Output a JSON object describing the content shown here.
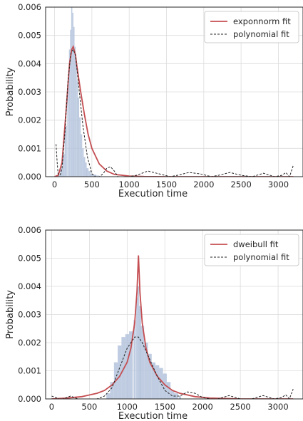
{
  "chart_data": [
    {
      "type": "histogram_with_fits",
      "xlabel": "Execution time",
      "ylabel": "Probability",
      "xlim": [
        -120,
        3330
      ],
      "ylim": [
        0,
        0.006
      ],
      "xticks": [
        0,
        500,
        1000,
        1500,
        2000,
        2500,
        3000
      ],
      "yticks": [
        "0.000",
        "0.001",
        "0.002",
        "0.003",
        "0.004",
        "0.005",
        "0.006"
      ],
      "grid": true,
      "legend_position": "top-right",
      "legend": [
        "exponnorm fit",
        "polynomial fit"
      ],
      "colors": {
        "hist": "#b4c3dc",
        "fit": "#c44e52",
        "poly": "#222222"
      },
      "histogram": {
        "x": [
          30,
          60,
          90,
          120,
          150,
          180,
          200,
          215,
          230,
          245,
          260,
          275,
          290,
          305,
          320,
          340,
          360,
          380,
          400,
          420,
          440,
          470,
          500,
          540,
          580,
          620
        ],
        "y": [
          0.0,
          0.0001,
          0.0003,
          0.0008,
          0.0018,
          0.0032,
          0.0045,
          0.0052,
          0.006,
          0.0058,
          0.0053,
          0.0046,
          0.004,
          0.0034,
          0.0028,
          0.0021,
          0.0015,
          0.001,
          0.0007,
          0.0005,
          0.0003,
          0.0002,
          0.0001,
          7e-05,
          4e-05,
          2e-05
        ]
      },
      "series": [
        {
          "name": "exponnorm fit",
          "x": [
            0,
            50,
            100,
            150,
            200,
            230,
            250,
            280,
            300,
            350,
            400,
            450,
            500,
            600,
            700,
            800,
            1000,
            1200,
            1500,
            2000,
            2500,
            3000,
            3200
          ],
          "y": [
            0.0,
            5e-05,
            0.0005,
            0.0022,
            0.004,
            0.0045,
            0.0046,
            0.0043,
            0.0039,
            0.003,
            0.0022,
            0.0015,
            0.001,
            0.00045,
            0.0002,
            8e-05,
            2e-05,
            5e-06,
            0.0,
            0.0,
            0.0,
            0.0,
            0.0
          ]
        },
        {
          "name": "polynomial fit",
          "x": [
            20,
            35,
            50,
            70,
            100,
            140,
            180,
            220,
            250,
            280,
            320,
            380,
            440,
            500,
            550,
            600,
            650,
            700,
            750,
            800,
            850,
            900,
            1000,
            1100,
            1250,
            1400,
            1550,
            1650,
            1800,
            1950,
            2100,
            2200,
            2350,
            2500,
            2650,
            2800,
            2950,
            3050,
            3100,
            3150,
            3200
          ],
          "y": [
            0.00115,
            0.0005,
            0.0,
            0.0,
            0.0003,
            0.0016,
            0.0034,
            0.0044,
            0.0045,
            0.0043,
            0.0033,
            0.0018,
            0.0007,
            0.0001,
            0.0,
            0.0,
            0.0001,
            0.0003,
            0.00035,
            0.0002,
            0.0,
            0.0,
            0.0,
            5e-05,
            0.0002,
            0.0001,
            0.0,
            5e-05,
            0.00015,
            0.0001,
            0.0,
            5e-05,
            0.00015,
            5e-05,
            0.0,
            0.00012,
            0.0,
            5e-05,
            0.00015,
            0.0,
            0.0004
          ]
        }
      ]
    },
    {
      "type": "histogram_with_fits",
      "xlabel": "Execution time",
      "ylabel": "Probability",
      "xlim": [
        -80,
        3330
      ],
      "ylim": [
        0,
        0.006
      ],
      "xticks": [
        0,
        500,
        1000,
        1500,
        2000,
        2500,
        3000
      ],
      "yticks": [
        "0.000",
        "0.001",
        "0.002",
        "0.003",
        "0.004",
        "0.005",
        "0.006"
      ],
      "grid": true,
      "legend_position": "top-right",
      "legend": [
        "dweibull fit",
        "polynomial fit"
      ],
      "colors": {
        "hist": "#b4c3dc",
        "fit": "#c44e52",
        "poly": "#222222"
      },
      "histogram": {
        "x": [
          750,
          800,
          850,
          900,
          950,
          1000,
          1050,
          1100,
          1130,
          1150,
          1170,
          1200,
          1250,
          1300,
          1350,
          1400,
          1450,
          1500,
          1550,
          1600,
          1650,
          1700
        ],
        "y": [
          0.0002,
          0.0006,
          0.0013,
          0.0019,
          0.0022,
          0.0023,
          0.0024,
          0.0028,
          0.0036,
          0.004,
          0.0033,
          0.0026,
          0.002,
          0.0016,
          0.0013,
          0.0012,
          0.0011,
          0.0009,
          0.0006,
          0.0003,
          0.0002,
          0.0001
        ]
      },
      "series": [
        {
          "name": "dweibull fit",
          "x": [
            0,
            200,
            400,
            600,
            700,
            800,
            900,
            1000,
            1050,
            1100,
            1130,
            1150,
            1170,
            1200,
            1250,
            1300,
            1400,
            1500,
            1600,
            1700,
            1900,
            2100,
            2500,
            3000,
            3200
          ],
          "y": [
            0.0,
            3e-05,
            8e-05,
            0.0002,
            0.0003,
            0.0005,
            0.0008,
            0.0013,
            0.0018,
            0.0027,
            0.0038,
            0.0051,
            0.0038,
            0.0027,
            0.0018,
            0.0013,
            0.0008,
            0.0005,
            0.0003,
            0.0002,
            8e-05,
            3e-05,
            0.0,
            0.0,
            0.0
          ]
        },
        {
          "name": "polynomial fit",
          "x": [
            0,
            50,
            100,
            150,
            200,
            250,
            300,
            350,
            400,
            500,
            600,
            700,
            800,
            900,
            1000,
            1100,
            1150,
            1200,
            1300,
            1400,
            1500,
            1600,
            1700,
            1800,
            1900,
            2000,
            2100,
            2200,
            2350,
            2500,
            2650,
            2800,
            2950,
            3050,
            3100,
            3150,
            3200
          ],
          "y": [
            0.0001,
            5e-05,
            0.0,
            0.0,
            5e-05,
            0.0001,
            5e-05,
            0.0,
            0.0,
            0.0,
            0.0,
            0.0001,
            0.0004,
            0.0011,
            0.0018,
            0.0022,
            0.0022,
            0.002,
            0.0014,
            0.0008,
            0.0003,
            0.0001,
            0.0001,
            0.00025,
            0.0002,
            5e-05,
            0.0,
            0.0,
            0.00012,
            0.0,
            0.0,
            0.00012,
            0.0,
            5e-05,
            0.00015,
            0.0,
            0.00035
          ]
        }
      ]
    }
  ]
}
